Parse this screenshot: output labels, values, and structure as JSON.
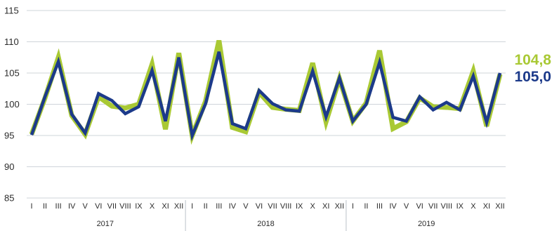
{
  "colors": {
    "series_a": "#a9c934",
    "series_b": "#1c3a8a",
    "grid": "#cfd4da",
    "text": "#2b2b2b"
  },
  "chart_data": {
    "type": "line",
    "title": "",
    "xlabel": "",
    "ylabel": "",
    "ylim": [
      85,
      115
    ],
    "y_ticks": [
      "85",
      "90",
      "95",
      "100",
      "105",
      "110",
      "115"
    ],
    "grid": "horizontal",
    "months": [
      "I",
      "II",
      "III",
      "IV",
      "V",
      "VI",
      "VII",
      "VIII",
      "IX",
      "X",
      "XI",
      "XII"
    ],
    "years": [
      "2017",
      "2018",
      "2019"
    ],
    "categories": [
      "I",
      "II",
      "III",
      "IV",
      "V",
      "VI",
      "VII",
      "VIII",
      "IX",
      "X",
      "XI",
      "XII",
      "I",
      "II",
      "III",
      "IV",
      "V",
      "VI",
      "VII",
      "VIII",
      "IX",
      "X",
      "XI",
      "XII",
      "I",
      "II",
      "III",
      "IV",
      "V",
      "VI",
      "VII",
      "VIII",
      "IX",
      "X",
      "XI",
      "XII"
    ],
    "series": [
      {
        "color": "#a9c934",
        "end_label": "104,8",
        "values": [
          95.2,
          101.0,
          107.5,
          98.2,
          95.2,
          101.2,
          99.7,
          99.4,
          100.0,
          106.4,
          96.0,
          108.2,
          95.0,
          100.5,
          110.2,
          96.3,
          95.6,
          101.9,
          99.5,
          99.2,
          99.0,
          106.6,
          97.2,
          104.1,
          97.3,
          100.2,
          108.6,
          96.1,
          97.2,
          101.0,
          99.6,
          99.5,
          99.3,
          105.3,
          96.5,
          104.8
        ]
      },
      {
        "color": "#1c3a8a",
        "end_label": "105,0",
        "values": [
          95.1,
          101.2,
          106.8,
          98.4,
          95.4,
          101.7,
          100.6,
          98.5,
          99.6,
          105.4,
          97.3,
          107.5,
          95.0,
          100.1,
          108.4,
          96.9,
          96.1,
          102.2,
          100.1,
          99.1,
          98.9,
          105.3,
          98.0,
          104.2,
          97.3,
          100.0,
          106.7,
          97.9,
          97.3,
          101.2,
          99.1,
          100.3,
          99.1,
          104.5,
          97.1,
          105.0
        ]
      }
    ]
  }
}
